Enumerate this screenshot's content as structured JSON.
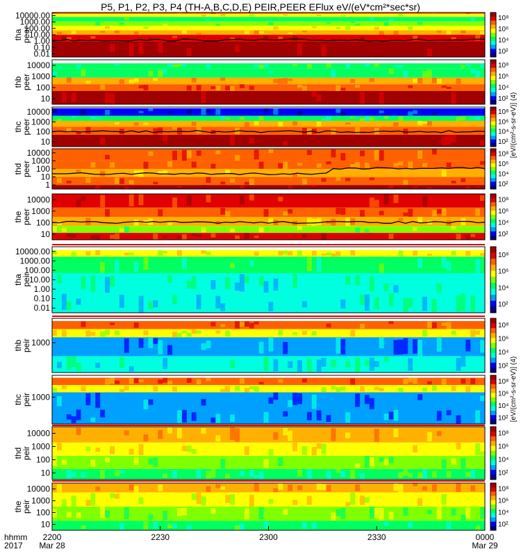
{
  "title": "P5, P1, P2, P3, P4 (TH-A,B,C,D,E) PEIR,PEER EFlux eV/(eV*cm²*sec*sr)",
  "colorbar_units_peer": "[eV/(cm²-s-sr-eV)] (4)",
  "colorbar_units_peir": "[eV/(cm²-s-sr-eV)] (4)",
  "colors": {
    "spectrum": [
      "#000080",
      "#0000ff",
      "#00a0ff",
      "#00ffe0",
      "#00ff60",
      "#80ff00",
      "#ffff00",
      "#ffb000",
      "#ff6000",
      "#e00000",
      "#a00000"
    ],
    "trace": "#000000",
    "status_bar": "#e00000"
  },
  "chart_data": {
    "type": "heatmap",
    "time_axis": {
      "ticks": [
        {
          "label": "2200",
          "sub": "Mar 28",
          "minutes": 0
        },
        {
          "label": "2230",
          "sub": "",
          "minutes": 30
        },
        {
          "label": "2300",
          "sub": "",
          "minutes": 60
        },
        {
          "label": "2330",
          "sub": "",
          "minutes": 90
        },
        {
          "label": "0000",
          "sub": "Mar 29",
          "minutes": 120
        }
      ],
      "range_minutes": [
        0,
        120
      ],
      "left_label": "hhmm",
      "left_label_sub": "2017"
    },
    "panels": [
      {
        "probe": "tha",
        "instrument": "peer",
        "ylabels": [
          "10000.00",
          "1000.00",
          "100.00",
          "10.00",
          "1.00",
          "0.10",
          "0.01"
        ],
        "yrange_log": [
          -2,
          4.3
        ],
        "bands": [
          [
            0.97,
            1.0,
            8
          ],
          [
            0.9,
            0.97,
            6
          ],
          [
            0.8,
            0.9,
            4
          ],
          [
            0.7,
            0.8,
            5
          ],
          [
            0.6,
            0.7,
            6
          ],
          [
            0.5,
            0.6,
            7
          ],
          [
            0.35,
            0.5,
            9
          ],
          [
            0.0,
            0.35,
            10
          ]
        ],
        "has_trace": true,
        "cbar_ticks": [
          "10⁸",
          "10⁶",
          "10⁴",
          "10²"
        ]
      },
      {
        "probe": "thb",
        "instrument": "peer",
        "ylabels": [
          "10000",
          "1000",
          "100",
          "10"
        ],
        "yrange_log": [
          0.8,
          4.3
        ],
        "bands": [
          [
            0.8,
            0.92,
            4
          ],
          [
            0.6,
            0.8,
            4
          ],
          [
            0.45,
            0.6,
            7
          ],
          [
            0.3,
            0.45,
            8
          ],
          [
            0.0,
            0.3,
            10
          ]
        ],
        "has_trace": false,
        "cbar_ticks": [
          "10⁸",
          "10⁶",
          "10⁴",
          "10²"
        ]
      },
      {
        "probe": "thc",
        "instrument": "peer",
        "ylabels": [
          "10000",
          "1000",
          "100",
          "10"
        ],
        "yrange_log": [
          0.8,
          4.3
        ],
        "bands": [
          [
            0.78,
            0.97,
            1
          ],
          [
            0.65,
            0.78,
            4
          ],
          [
            0.5,
            0.65,
            7
          ],
          [
            0.3,
            0.5,
            8
          ],
          [
            0.0,
            0.3,
            10
          ]
        ],
        "has_trace": true,
        "cbar_ticks": [
          "10⁸",
          "10⁶",
          "10⁴",
          "10²"
        ]
      },
      {
        "probe": "thd",
        "instrument": "peer",
        "ylabels": [
          "10000",
          "1000",
          "100",
          "10",
          "1"
        ],
        "yrange_log": [
          0,
          4.3
        ],
        "bands": [
          [
            0.7,
            1.0,
            8
          ],
          [
            0.5,
            0.7,
            8
          ],
          [
            0.3,
            0.5,
            7
          ],
          [
            0.1,
            0.3,
            8
          ],
          [
            0.0,
            0.1,
            10
          ]
        ],
        "has_trace": true,
        "cbar_ticks": [
          "10⁸",
          "10⁶",
          "10⁴",
          "10²"
        ]
      },
      {
        "probe": "the",
        "instrument": "peer",
        "ylabels": [
          "10000",
          "1000",
          "100",
          "10"
        ],
        "yrange_log": [
          0.8,
          4.3
        ],
        "bands": [
          [
            0.7,
            1.0,
            9
          ],
          [
            0.5,
            0.7,
            8
          ],
          [
            0.3,
            0.5,
            7
          ],
          [
            0.15,
            0.3,
            5
          ],
          [
            0.0,
            0.15,
            9
          ]
        ],
        "has_trace": true,
        "cbar_ticks": [
          "10⁸",
          "10⁶",
          "10⁴",
          "10²"
        ]
      },
      {
        "probe": "tha",
        "instrument": "peir",
        "ylabels": [
          "10000.00",
          "1000.00",
          "100.00",
          "10.00",
          "1.00",
          "0.10",
          "0.01"
        ],
        "yrange_log": [
          -2,
          4.3
        ],
        "bands": [
          [
            0.85,
            0.95,
            6
          ],
          [
            0.6,
            0.85,
            4
          ],
          [
            0.3,
            0.6,
            3
          ],
          [
            0.0,
            0.3,
            3
          ]
        ],
        "has_trace": false,
        "cbar_ticks": [
          "10⁸",
          "10⁶",
          "10⁴",
          "10²"
        ]
      },
      {
        "probe": "thb",
        "instrument": "peir",
        "ylabels": [
          "1000"
        ],
        "yrange_log": [
          1.5,
          4.3
        ],
        "bands": [
          [
            0.8,
            0.95,
            8
          ],
          [
            0.65,
            0.8,
            6
          ],
          [
            0.3,
            0.65,
            2
          ],
          [
            0.0,
            0.3,
            3
          ]
        ],
        "has_trace": false,
        "cbar_ticks": [
          "10⁸",
          "10⁶",
          "10⁴",
          "10²"
        ]
      },
      {
        "probe": "thc",
        "instrument": "peir",
        "ylabels": [
          "1000"
        ],
        "yrange_log": [
          1.5,
          4.3
        ],
        "bands": [
          [
            0.8,
            0.95,
            8
          ],
          [
            0.65,
            0.8,
            6
          ],
          [
            0.3,
            0.65,
            2
          ],
          [
            0.0,
            0.3,
            2
          ]
        ],
        "has_trace": false,
        "cbar_ticks": [
          "10⁸",
          "10⁶",
          "10⁴",
          "10²"
        ]
      },
      {
        "probe": "thd",
        "instrument": "peir",
        "ylabels": [
          "10000",
          "1000",
          "100",
          "10"
        ],
        "yrange_log": [
          0.8,
          4.3
        ],
        "bands": [
          [
            0.7,
            1.0,
            7
          ],
          [
            0.45,
            0.7,
            6
          ],
          [
            0.2,
            0.45,
            5
          ],
          [
            0.0,
            0.2,
            4
          ]
        ],
        "has_trace": false,
        "cbar_ticks": [
          "10⁸",
          "10⁶",
          "10⁴",
          "10²"
        ]
      },
      {
        "probe": "the",
        "instrument": "peir",
        "ylabels": [
          "10000",
          "1000",
          "100",
          "10"
        ],
        "yrange_log": [
          0.8,
          4.3
        ],
        "bands": [
          [
            0.8,
            1.0,
            7
          ],
          [
            0.5,
            0.8,
            6
          ],
          [
            0.2,
            0.5,
            5
          ],
          [
            0.0,
            0.2,
            4
          ]
        ],
        "has_trace": false,
        "cbar_ticks": [
          "10⁸",
          "10⁶",
          "10⁴",
          "10²"
        ]
      }
    ]
  }
}
